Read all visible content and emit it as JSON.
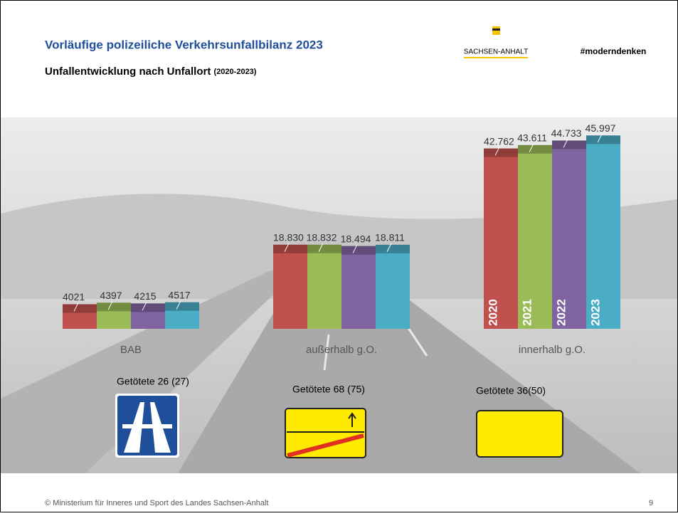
{
  "header": {
    "title": "Vorläufige polizeiliche Verkehrsunfallbilanz 2023",
    "subtitle": "Unfallentwicklung nach Unfallort",
    "subtitle_note": "(2020-2023)",
    "logo_text": "SACHSEN-ANHALT",
    "hashtag": "#moderndenken"
  },
  "chart_data": {
    "type": "bar",
    "categories": [
      "BAB",
      "außerhalb g.O.",
      "innerhalb g.O."
    ],
    "series": [
      {
        "name": "2020",
        "color": "#c0504d",
        "values": [
          4021,
          18830,
          42762
        ],
        "value_labels": [
          "4021",
          "18.830",
          "42.762"
        ]
      },
      {
        "name": "2021",
        "color": "#9bbb59",
        "values": [
          4397,
          18832,
          43611
        ],
        "value_labels": [
          "4397",
          "18.832",
          "43.611"
        ]
      },
      {
        "name": "2022",
        "color": "#8064a2",
        "values": [
          4215,
          18494,
          44733
        ],
        "value_labels": [
          "4215",
          "18.494",
          "44.733"
        ]
      },
      {
        "name": "2023",
        "color": "#4bacc6",
        "values": [
          4517,
          18811,
          45997
        ],
        "value_labels": [
          "4517",
          "18.811",
          "45.997"
        ]
      }
    ],
    "ylim": [
      -2100,
      48000
    ]
  },
  "fatalities": [
    "Getötete 26 (27)",
    "Getötete 68 (75)",
    "Getötete 36(50)"
  ],
  "footer": {
    "copyright": "© Ministerium für Inneres und Sport des Landes Sachsen-Anhalt",
    "page": "9"
  }
}
